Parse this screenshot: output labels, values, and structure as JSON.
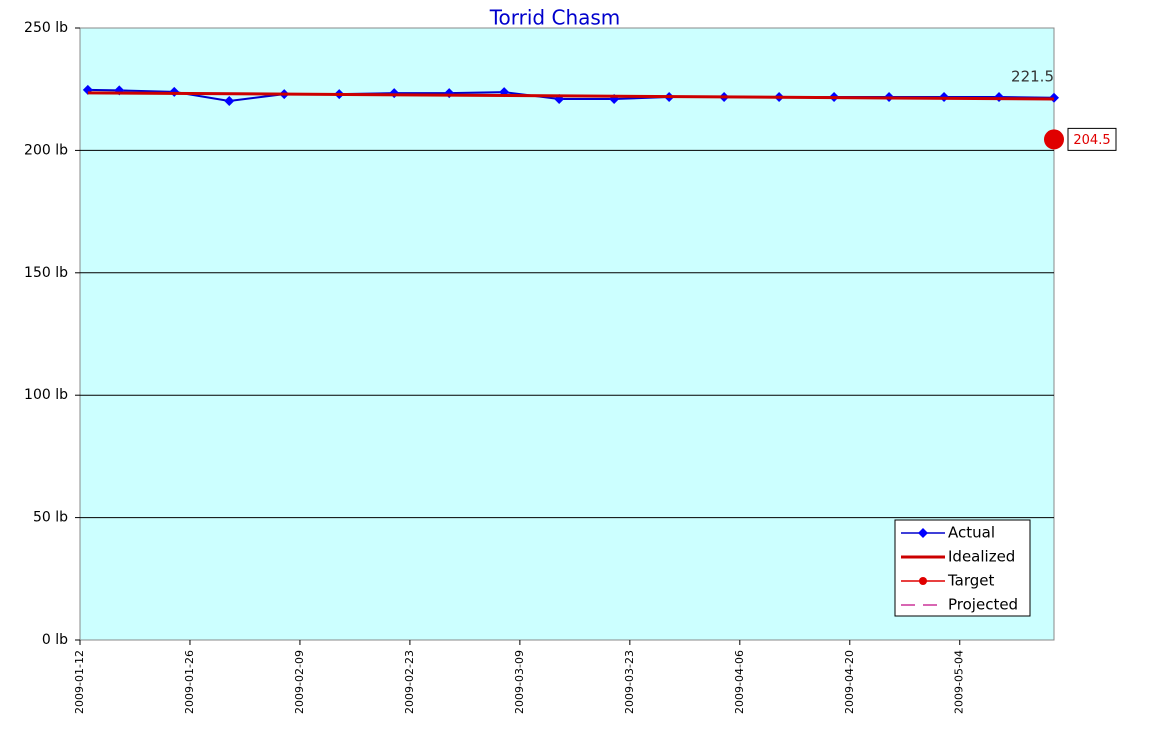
{
  "chart_data": {
    "type": "line",
    "title": "Torrid Chasm",
    "xlim": [
      "2009-01-12",
      "2009-05-16"
    ],
    "xticks": [
      "2009-01-12",
      "2009-01-26",
      "2009-02-09",
      "2009-02-23",
      "2009-03-09",
      "2009-03-23",
      "2009-04-06",
      "2009-04-20",
      "2009-05-04"
    ],
    "ylim": [
      0,
      250
    ],
    "yticks": [
      {
        "value": 0,
        "label": "0 lb"
      },
      {
        "value": 50,
        "label": "50 lb"
      },
      {
        "value": 100,
        "label": "100 lb"
      },
      {
        "value": 150,
        "label": "150 lb"
      },
      {
        "value": 200,
        "label": "200 lb"
      },
      {
        "value": 250,
        "label": "250 lb"
      }
    ],
    "grid": true,
    "legend": "lower right",
    "series": [
      {
        "name": "Actual",
        "color": "#0000cc",
        "x": [
          "2009-01-13",
          "2009-01-17",
          "2009-01-24",
          "2009-01-31",
          "2009-02-07",
          "2009-02-14",
          "2009-02-21",
          "2009-02-28",
          "2009-03-07",
          "2009-03-14",
          "2009-03-21",
          "2009-03-28",
          "2009-04-04",
          "2009-04-11",
          "2009-04-18",
          "2009-04-25",
          "2009-05-02",
          "2009-05-09",
          "2009-05-16"
        ],
        "values": [
          224.7,
          224.5,
          223.9,
          220.2,
          223,
          223,
          223.4,
          223.4,
          223.8,
          221,
          221,
          221.8,
          221.8,
          221.8,
          221.8,
          221.8,
          221.8,
          221.8,
          221.5
        ]
      },
      {
        "name": "Idealized",
        "color": "#cc0000",
        "x": [
          "2009-01-13",
          "2009-05-16"
        ],
        "values": [
          223.5,
          221
        ]
      },
      {
        "name": "Target",
        "color": "#e00000",
        "x": [
          "2009-05-16"
        ],
        "values": [
          204.5
        ]
      },
      {
        "name": "Projected",
        "color": "#cc3399",
        "x": [],
        "values": []
      }
    ]
  }
}
